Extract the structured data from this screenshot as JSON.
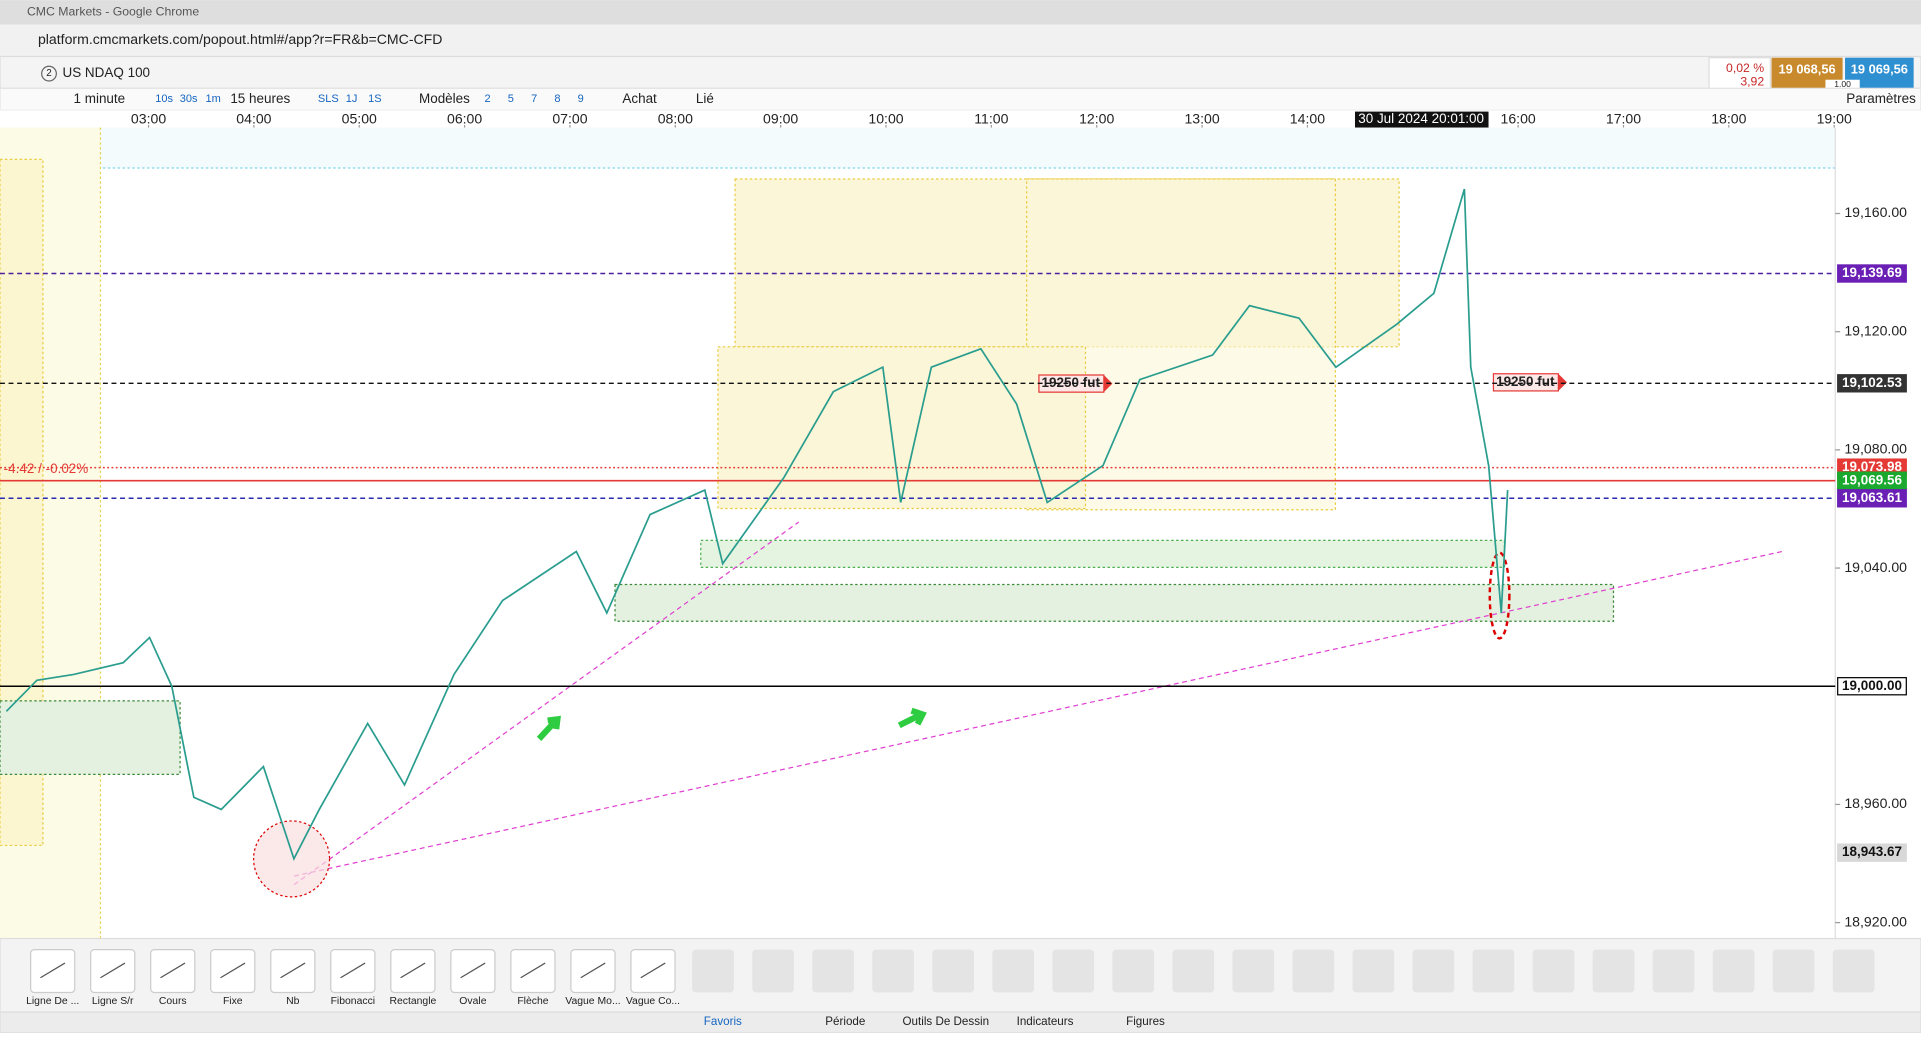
{
  "window": {
    "title": "CMC Markets - Google Chrome",
    "url": "platform.cmcmarkets.com/popout.html#/app?r=FR&b=CMC-CFD"
  },
  "toolbar": {
    "instrument_count": "2",
    "instrument": "US NDAQ 100",
    "interval": "1 minute",
    "quick": [
      "10s",
      "30s",
      "1m"
    ],
    "range": "15 heures",
    "periods": [
      "SLS",
      "1J",
      "1S"
    ],
    "models": "Modèles",
    "nums": [
      "2",
      "5",
      "7",
      "8",
      "9"
    ],
    "buy": "Achat",
    "linked": "Lié",
    "settings": "Paramètres"
  },
  "quote": {
    "change_pct": "0,02 %",
    "change": "3,92",
    "sell": "19 068,56",
    "buy": "19 069,56",
    "size": "1.00"
  },
  "chart_data": {
    "type": "line",
    "x": [
      1.65,
      1.94,
      2.29,
      2.76,
      3.01,
      3.22,
      3.43,
      3.69,
      4.09,
      4.38,
      4.62,
      5.08,
      5.43,
      5.9,
      6.36,
      7.06,
      7.35,
      7.76,
      8.28,
      8.45,
      9.03,
      9.5,
      9.97,
      10.14,
      10.43,
      10.9,
      11.24,
      11.53,
      12.06,
      12.41,
      13.1,
      13.45,
      13.92,
      14.27,
      14.85,
      15.2,
      15.49,
      15.55,
      15.72,
      15.84,
      15.9
    ],
    "series": [
      {
        "color": "#2a9d8f",
        "values": [
          18991.5,
          19002,
          19004,
          19008,
          19016.5,
          19000,
          18962.4,
          18958.3,
          18972.8,
          18941.6,
          18958.3,
          18987.4,
          18966.6,
          19004,
          19029,
          19045.6,
          19024.8,
          19058.1,
          19066.4,
          19041.5,
          19070.6,
          19099.7,
          19108,
          19062.2,
          19108,
          19114.2,
          19095.5,
          19062.2,
          19074.7,
          19103.8,
          19112.1,
          19128.8,
          19124.6,
          19108,
          19122.6,
          19133,
          19168.3,
          19108,
          19074.7,
          19024.8,
          19066.4
        ]
      }
    ],
    "xlim": [
      1.59,
      19.01
    ],
    "xticks": [
      {
        "value": 3,
        "label": "03:00"
      },
      {
        "value": 4,
        "label": "04:00"
      },
      {
        "value": 5,
        "label": "05:00"
      },
      {
        "value": 6,
        "label": "06:00"
      },
      {
        "value": 7,
        "label": "07:00"
      },
      {
        "value": 8,
        "label": "08:00"
      },
      {
        "value": 9,
        "label": "09:00"
      },
      {
        "value": 10,
        "label": "10:00"
      },
      {
        "value": 11,
        "label": "11:00"
      },
      {
        "value": 12,
        "label": "12:00"
      },
      {
        "value": 13,
        "label": "13:00"
      },
      {
        "value": 14,
        "label": "14:00"
      },
      {
        "value": 16,
        "label": "16:00"
      },
      {
        "value": 17,
        "label": "17:00"
      },
      {
        "value": 18,
        "label": "18:00"
      },
      {
        "value": 19,
        "label": "19:00"
      }
    ],
    "ylim": [
      18914.6,
      19189.1
    ],
    "yticks": [
      {
        "value": 19160,
        "label": "19,160.00"
      },
      {
        "value": 19120,
        "label": "19,120.00"
      },
      {
        "value": 19080,
        "label": "19,080.00"
      },
      {
        "value": 19040,
        "label": "19,040.00"
      },
      {
        "value": 18960,
        "label": "18,960.00"
      },
      {
        "value": 18920,
        "label": "18,920.00"
      }
    ],
    "levels": [
      {
        "value": 19139.69,
        "label": "19,139.69",
        "line_color": "#4b1fa0",
        "label_color": "#6a1fb5",
        "style": "dashed"
      },
      {
        "value": 19102.53,
        "label": "19,102.53",
        "line_color": "#111111",
        "label_color": "#333333",
        "style": "dashed"
      },
      {
        "value": 19073.98,
        "label": "19,073.98",
        "line_color": "#e53935",
        "label_color": "#e53935",
        "style": "dotted"
      },
      {
        "value": 19069.56,
        "label": "19,069.56",
        "line_color": "#e53935",
        "label_color": "#1aa82e",
        "style": "solid"
      },
      {
        "value": 19063.61,
        "label": "19,063.61",
        "line_color": "#2a2ab0",
        "label_color": "#6a1fb5",
        "style": "dashed"
      },
      {
        "value": 19000,
        "label": "19,000.00",
        "line_color": "#000000",
        "label_color": "#ffffff",
        "style": "solid"
      },
      {
        "value": 18943.67,
        "label": "18,943.67",
        "line_color": "none",
        "label_color": "#d8d8d8",
        "style": "none"
      }
    ],
    "change_label": "-4.42 / -0.02%",
    "annotations": [
      "19250 fut",
      "19250 fut"
    ],
    "crosshair_label": "30 Jul 2024 20:01:00"
  },
  "tools": [
    "Ligne De ...",
    "Ligne S/r",
    "Cours",
    "Fixe",
    "Nb",
    "Fibonacci",
    "Rectangle",
    "Ovale",
    "Flèche",
    "Vague Mo...",
    "Vague Co..."
  ],
  "tabs": [
    "Favoris",
    "Période",
    "Outils De Dessin",
    "Indicateurs",
    "Figures"
  ]
}
